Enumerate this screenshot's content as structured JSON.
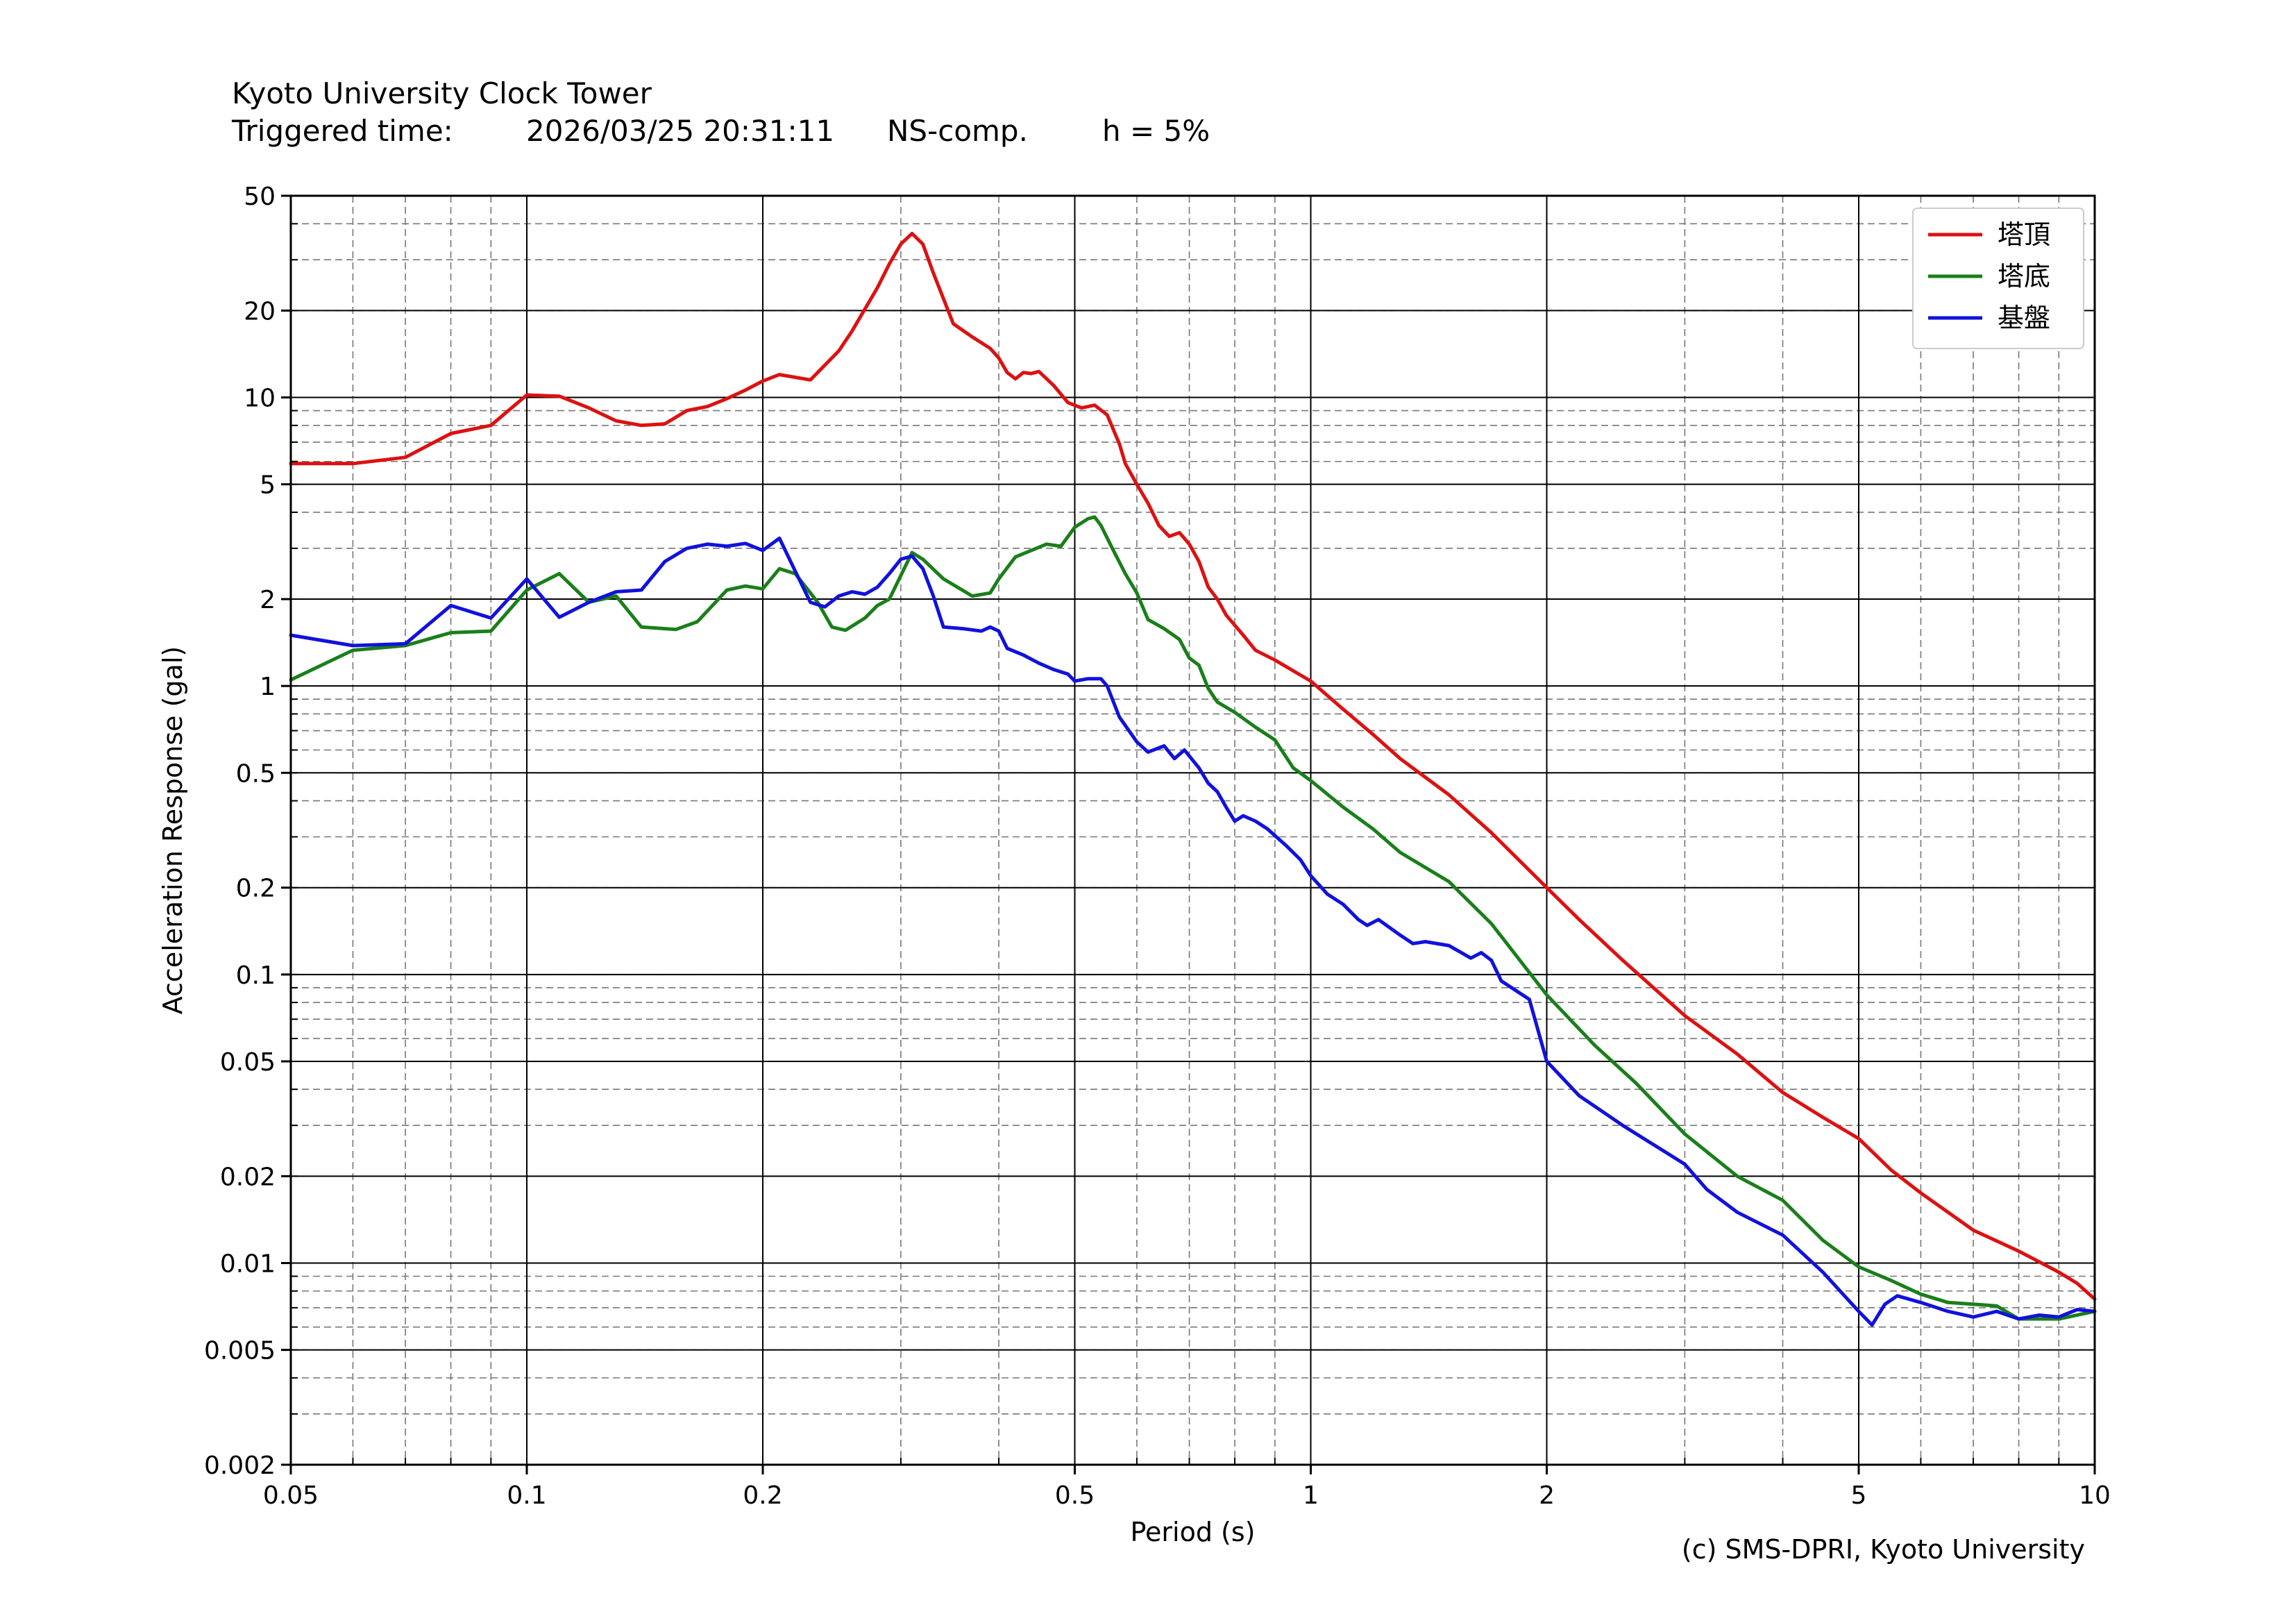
{
  "header": {
    "title": "Kyoto University Clock Tower",
    "triggered_label": "Triggered time:",
    "triggered_value": "2026/03/25 20:31:11",
    "component": "NS-comp.",
    "damping": "h = 5%"
  },
  "footer": {
    "copyright": "(c) SMS-DPRI, Kyoto University"
  },
  "chart_data": {
    "type": "line",
    "xlabel": "Period (s)",
    "ylabel": "Acceleration Response (gal)",
    "xscale": "log",
    "yscale": "log",
    "xlim": [
      0.05,
      10
    ],
    "ylim": [
      0.002,
      50
    ],
    "xticks": [
      0.05,
      0.1,
      0.2,
      0.5,
      1,
      2,
      5,
      10
    ],
    "xtick_labels": [
      "0.05",
      "0.1",
      "0.2",
      "0.5",
      "1",
      "2",
      "5",
      "10"
    ],
    "yticks": [
      0.002,
      0.005,
      0.01,
      0.02,
      0.05,
      0.1,
      0.2,
      0.5,
      1,
      2,
      5,
      10,
      20,
      50
    ],
    "ytick_labels": [
      "0.002",
      "0.005",
      "0.01",
      "0.02",
      "0.05",
      "0.1",
      "0.2",
      "0.5",
      "1",
      "2",
      "5",
      "10",
      "20",
      "50"
    ],
    "grid": true,
    "legend_position": "top-right",
    "series": [
      {
        "name": "塔頂",
        "color": "#dd1111",
        "points": [
          [
            0.05,
            5.9
          ],
          [
            0.06,
            5.9
          ],
          [
            0.07,
            6.2
          ],
          [
            0.08,
            7.5
          ],
          [
            0.09,
            8.0
          ],
          [
            0.1,
            10.2
          ],
          [
            0.11,
            10.1
          ],
          [
            0.12,
            9.2
          ],
          [
            0.13,
            8.3
          ],
          [
            0.14,
            8.0
          ],
          [
            0.15,
            8.1
          ],
          [
            0.16,
            9.0
          ],
          [
            0.17,
            9.3
          ],
          [
            0.18,
            9.9
          ],
          [
            0.19,
            10.6
          ],
          [
            0.2,
            11.4
          ],
          [
            0.21,
            12.0
          ],
          [
            0.23,
            11.5
          ],
          [
            0.25,
            14.5
          ],
          [
            0.26,
            17.0
          ],
          [
            0.28,
            24.0
          ],
          [
            0.29,
            29.0
          ],
          [
            0.3,
            34.0
          ],
          [
            0.31,
            37.0
          ],
          [
            0.32,
            34.0
          ],
          [
            0.33,
            27.0
          ],
          [
            0.35,
            18.0
          ],
          [
            0.37,
            16.2
          ],
          [
            0.39,
            14.8
          ],
          [
            0.4,
            13.7
          ],
          [
            0.41,
            12.2
          ],
          [
            0.42,
            11.6
          ],
          [
            0.43,
            12.2
          ],
          [
            0.44,
            12.1
          ],
          [
            0.45,
            12.3
          ],
          [
            0.47,
            11.0
          ],
          [
            0.49,
            9.6
          ],
          [
            0.51,
            9.2
          ],
          [
            0.53,
            9.4
          ],
          [
            0.55,
            8.7
          ],
          [
            0.57,
            6.9
          ],
          [
            0.58,
            5.9
          ],
          [
            0.6,
            5.0
          ],
          [
            0.62,
            4.3
          ],
          [
            0.64,
            3.6
          ],
          [
            0.66,
            3.3
          ],
          [
            0.68,
            3.4
          ],
          [
            0.7,
            3.1
          ],
          [
            0.72,
            2.7
          ],
          [
            0.74,
            2.2
          ],
          [
            0.76,
            2.0
          ],
          [
            0.78,
            1.76
          ],
          [
            0.82,
            1.5
          ],
          [
            0.85,
            1.33
          ],
          [
            0.9,
            1.23
          ],
          [
            1.0,
            1.04
          ],
          [
            1.1,
            0.83
          ],
          [
            1.2,
            0.68
          ],
          [
            1.3,
            0.56
          ],
          [
            1.5,
            0.42
          ],
          [
            1.7,
            0.31
          ],
          [
            2.0,
            0.2
          ],
          [
            2.2,
            0.155
          ],
          [
            2.5,
            0.112
          ],
          [
            3.0,
            0.072
          ],
          [
            3.5,
            0.053
          ],
          [
            4.0,
            0.039
          ],
          [
            4.5,
            0.032
          ],
          [
            5.0,
            0.027
          ],
          [
            5.5,
            0.021
          ],
          [
            6.0,
            0.0175
          ],
          [
            7.0,
            0.013
          ],
          [
            8.0,
            0.011
          ],
          [
            9.0,
            0.0093
          ],
          [
            9.5,
            0.0085
          ],
          [
            10.0,
            0.0075
          ]
        ]
      },
      {
        "name": "塔底",
        "color": "#1a7f1a",
        "points": [
          [
            0.05,
            1.05
          ],
          [
            0.06,
            1.33
          ],
          [
            0.07,
            1.38
          ],
          [
            0.08,
            1.53
          ],
          [
            0.09,
            1.55
          ],
          [
            0.1,
            2.15
          ],
          [
            0.11,
            2.45
          ],
          [
            0.12,
            1.95
          ],
          [
            0.13,
            2.05
          ],
          [
            0.14,
            1.6
          ],
          [
            0.155,
            1.57
          ],
          [
            0.165,
            1.67
          ],
          [
            0.18,
            2.15
          ],
          [
            0.19,
            2.22
          ],
          [
            0.2,
            2.17
          ],
          [
            0.21,
            2.55
          ],
          [
            0.22,
            2.45
          ],
          [
            0.235,
            1.95
          ],
          [
            0.245,
            1.6
          ],
          [
            0.255,
            1.56
          ],
          [
            0.27,
            1.72
          ],
          [
            0.28,
            1.9
          ],
          [
            0.29,
            2.0
          ],
          [
            0.31,
            2.9
          ],
          [
            0.32,
            2.75
          ],
          [
            0.34,
            2.35
          ],
          [
            0.37,
            2.05
          ],
          [
            0.39,
            2.1
          ],
          [
            0.4,
            2.35
          ],
          [
            0.42,
            2.8
          ],
          [
            0.44,
            2.95
          ],
          [
            0.46,
            3.1
          ],
          [
            0.48,
            3.05
          ],
          [
            0.5,
            3.55
          ],
          [
            0.52,
            3.8
          ],
          [
            0.53,
            3.85
          ],
          [
            0.54,
            3.6
          ],
          [
            0.56,
            2.95
          ],
          [
            0.58,
            2.45
          ],
          [
            0.6,
            2.1
          ],
          [
            0.62,
            1.7
          ],
          [
            0.65,
            1.58
          ],
          [
            0.68,
            1.45
          ],
          [
            0.7,
            1.25
          ],
          [
            0.72,
            1.18
          ],
          [
            0.74,
            0.98
          ],
          [
            0.76,
            0.88
          ],
          [
            0.8,
            0.81
          ],
          [
            0.85,
            0.72
          ],
          [
            0.9,
            0.65
          ],
          [
            0.95,
            0.52
          ],
          [
            1.0,
            0.47
          ],
          [
            1.1,
            0.38
          ],
          [
            1.2,
            0.32
          ],
          [
            1.3,
            0.265
          ],
          [
            1.5,
            0.21
          ],
          [
            1.7,
            0.15
          ],
          [
            2.0,
            0.085
          ],
          [
            2.3,
            0.057
          ],
          [
            2.6,
            0.042
          ],
          [
            3.0,
            0.028
          ],
          [
            3.5,
            0.02
          ],
          [
            4.0,
            0.0165
          ],
          [
            4.5,
            0.012
          ],
          [
            5.0,
            0.0097
          ],
          [
            5.5,
            0.0087
          ],
          [
            6.0,
            0.0078
          ],
          [
            6.5,
            0.0073
          ],
          [
            7.0,
            0.0072
          ],
          [
            7.5,
            0.0071
          ],
          [
            8.0,
            0.0064
          ],
          [
            9.0,
            0.0064
          ],
          [
            10.0,
            0.0068
          ]
        ]
      },
      {
        "name": "基盤",
        "color": "#1111dd",
        "points": [
          [
            0.05,
            1.5
          ],
          [
            0.06,
            1.38
          ],
          [
            0.07,
            1.4
          ],
          [
            0.08,
            1.9
          ],
          [
            0.09,
            1.72
          ],
          [
            0.1,
            2.35
          ],
          [
            0.11,
            1.73
          ],
          [
            0.12,
            1.95
          ],
          [
            0.13,
            2.12
          ],
          [
            0.14,
            2.15
          ],
          [
            0.15,
            2.7
          ],
          [
            0.16,
            3.0
          ],
          [
            0.17,
            3.1
          ],
          [
            0.18,
            3.05
          ],
          [
            0.19,
            3.12
          ],
          [
            0.2,
            2.95
          ],
          [
            0.21,
            3.25
          ],
          [
            0.22,
            2.5
          ],
          [
            0.23,
            1.95
          ],
          [
            0.24,
            1.88
          ],
          [
            0.25,
            2.05
          ],
          [
            0.26,
            2.12
          ],
          [
            0.27,
            2.08
          ],
          [
            0.28,
            2.2
          ],
          [
            0.29,
            2.45
          ],
          [
            0.3,
            2.75
          ],
          [
            0.31,
            2.82
          ],
          [
            0.32,
            2.55
          ],
          [
            0.33,
            2.05
          ],
          [
            0.34,
            1.6
          ],
          [
            0.36,
            1.58
          ],
          [
            0.38,
            1.55
          ],
          [
            0.39,
            1.6
          ],
          [
            0.4,
            1.55
          ],
          [
            0.41,
            1.35
          ],
          [
            0.43,
            1.28
          ],
          [
            0.45,
            1.2
          ],
          [
            0.47,
            1.14
          ],
          [
            0.49,
            1.1
          ],
          [
            0.5,
            1.04
          ],
          [
            0.52,
            1.06
          ],
          [
            0.54,
            1.06
          ],
          [
            0.55,
            1.0
          ],
          [
            0.57,
            0.78
          ],
          [
            0.6,
            0.64
          ],
          [
            0.62,
            0.59
          ],
          [
            0.65,
            0.62
          ],
          [
            0.67,
            0.56
          ],
          [
            0.69,
            0.6
          ],
          [
            0.72,
            0.52
          ],
          [
            0.74,
            0.46
          ],
          [
            0.76,
            0.43
          ],
          [
            0.78,
            0.38
          ],
          [
            0.8,
            0.34
          ],
          [
            0.82,
            0.355
          ],
          [
            0.85,
            0.34
          ],
          [
            0.88,
            0.32
          ],
          [
            0.93,
            0.28
          ],
          [
            0.97,
            0.25
          ],
          [
            1.0,
            0.22
          ],
          [
            1.05,
            0.19
          ],
          [
            1.1,
            0.175
          ],
          [
            1.15,
            0.155
          ],
          [
            1.18,
            0.148
          ],
          [
            1.22,
            0.155
          ],
          [
            1.3,
            0.137
          ],
          [
            1.35,
            0.128
          ],
          [
            1.4,
            0.13
          ],
          [
            1.5,
            0.126
          ],
          [
            1.6,
            0.114
          ],
          [
            1.65,
            0.119
          ],
          [
            1.7,
            0.112
          ],
          [
            1.75,
            0.095
          ],
          [
            1.9,
            0.082
          ],
          [
            2.0,
            0.05
          ],
          [
            2.2,
            0.038
          ],
          [
            2.5,
            0.03
          ],
          [
            3.0,
            0.022
          ],
          [
            3.2,
            0.018
          ],
          [
            3.5,
            0.015
          ],
          [
            4.0,
            0.0125
          ],
          [
            4.5,
            0.0093
          ],
          [
            5.0,
            0.0068
          ],
          [
            5.2,
            0.0061
          ],
          [
            5.4,
            0.0072
          ],
          [
            5.6,
            0.0077
          ],
          [
            6.0,
            0.0073
          ],
          [
            6.5,
            0.0068
          ],
          [
            7.0,
            0.0065
          ],
          [
            7.5,
            0.0068
          ],
          [
            8.0,
            0.0064
          ],
          [
            8.5,
            0.0066
          ],
          [
            9.0,
            0.0065
          ],
          [
            9.5,
            0.0069
          ],
          [
            10.0,
            0.0068
          ]
        ]
      }
    ]
  }
}
